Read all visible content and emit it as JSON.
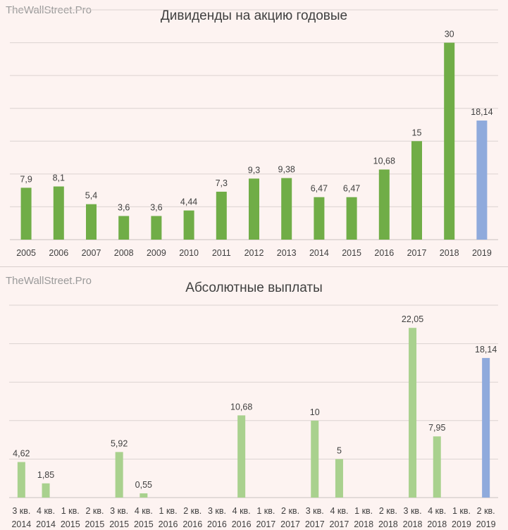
{
  "watermark": "TheWallStreet.Pro",
  "colors": {
    "annual_bar": "#70ad47",
    "annual_forecast": "#8faadc",
    "quarter_bar": "#a9d18e",
    "quarter_forecast": "#8faadc",
    "grid": "#dcd3d1",
    "background": "#fdf3f1"
  },
  "chart_data": [
    {
      "type": "bar",
      "title": "Дивиденды на акцию годовые",
      "categories": [
        "2005",
        "2006",
        "2007",
        "2008",
        "2009",
        "2010",
        "2011",
        "2012",
        "2013",
        "2014",
        "2015",
        "2016",
        "2017",
        "2018",
        "2019"
      ],
      "values": [
        7.9,
        8.1,
        5.4,
        3.6,
        3.6,
        4.44,
        7.3,
        9.3,
        9.38,
        6.47,
        6.47,
        10.68,
        15,
        30,
        18.14
      ],
      "labels": [
        "7,9",
        "8,1",
        "5,4",
        "3,6",
        "3,6",
        "4,44",
        "7,3",
        "9,3",
        "9,38",
        "6,47",
        "6,47",
        "10,68",
        "15",
        "30",
        "18,14"
      ],
      "highlight_last": true,
      "ylim": [
        0,
        35
      ],
      "grid": true,
      "xlabel": "",
      "ylabel": ""
    },
    {
      "type": "bar",
      "title": "Абсолютные выплаты",
      "categories": [
        [
          "3 кв.",
          "2014"
        ],
        [
          "4 кв.",
          "2014"
        ],
        [
          "1 кв.",
          "2015"
        ],
        [
          "2 кв.",
          "2015"
        ],
        [
          "3 кв.",
          "2015"
        ],
        [
          "4 кв.",
          "2015"
        ],
        [
          "1 кв.",
          "2016"
        ],
        [
          "2 кв.",
          "2016"
        ],
        [
          "3 кв.",
          "2016"
        ],
        [
          "4 кв.",
          "2016"
        ],
        [
          "1 кв.",
          "2017"
        ],
        [
          "2 кв.",
          "2017"
        ],
        [
          "3 кв.",
          "2017"
        ],
        [
          "4 кв.",
          "2017"
        ],
        [
          "1 кв.",
          "2018"
        ],
        [
          "2 кв.",
          "2018"
        ],
        [
          "3 кв.",
          "2018"
        ],
        [
          "4 кв.",
          "2018"
        ],
        [
          "1 кв.",
          "2019"
        ],
        [
          "2 кв.",
          "2019"
        ]
      ],
      "values": [
        4.62,
        1.85,
        null,
        null,
        5.92,
        0.55,
        null,
        null,
        null,
        10.68,
        null,
        null,
        10,
        5,
        null,
        null,
        22.05,
        7.95,
        null,
        18.14
      ],
      "labels": [
        "4,62",
        "1,85",
        "",
        "",
        "5,92",
        "0,55",
        "",
        "",
        "",
        "10,68",
        "",
        "",
        "10",
        "5",
        "",
        "",
        "22,05",
        "7,95",
        "",
        "18,14"
      ],
      "highlight_last": true,
      "ylim": [
        0,
        25
      ],
      "grid": true,
      "xlabel": "",
      "ylabel": ""
    }
  ]
}
